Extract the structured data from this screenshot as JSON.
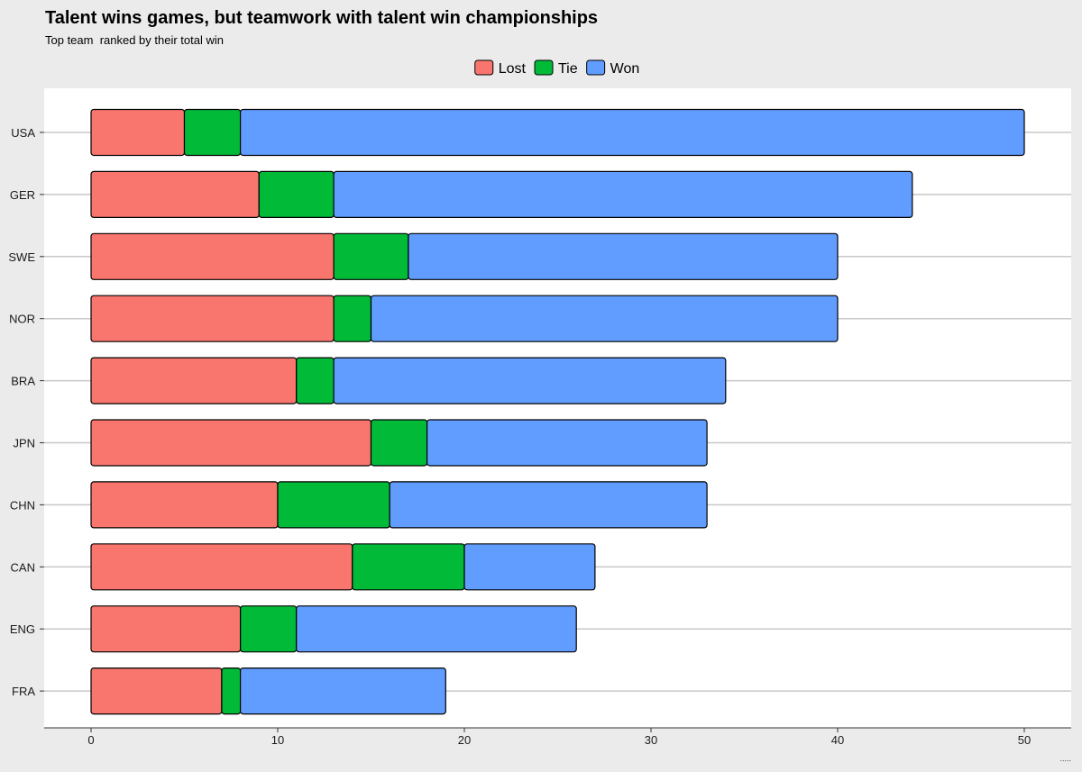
{
  "colors": {
    "page_background": "#ebebeb",
    "panel_background": "#ffffff",
    "grid": "#c8c8c8",
    "axis": "#333333",
    "bar_outline": "#000000"
  },
  "caption": ".....",
  "chart_data": {
    "type": "bar",
    "orientation": "horizontal",
    "stacked": true,
    "title": "Talent wins games, but teamwork with talent win championships",
    "subtitle": "Top team  ranked by their total win",
    "xlabel": "",
    "ylabel": "",
    "xlim": [
      0,
      52
    ],
    "xticks": [
      0,
      10,
      20,
      30,
      40,
      50
    ],
    "legend_position": "top",
    "categories": [
      "USA",
      "GER",
      "SWE",
      "NOR",
      "BRA",
      "JPN",
      "CHN",
      "CAN",
      "ENG",
      "FRA"
    ],
    "series": [
      {
        "name": "Lost",
        "color": "#f8766d",
        "values": [
          5,
          9,
          13,
          13,
          11,
          15,
          10,
          14,
          8,
          7
        ]
      },
      {
        "name": "Tie",
        "color": "#00ba38",
        "values": [
          3,
          4,
          4,
          2,
          2,
          3,
          6,
          6,
          3,
          1
        ]
      },
      {
        "name": "Won",
        "color": "#619cff",
        "values": [
          42,
          31,
          23,
          25,
          21,
          15,
          17,
          7,
          15,
          11
        ]
      }
    ]
  }
}
